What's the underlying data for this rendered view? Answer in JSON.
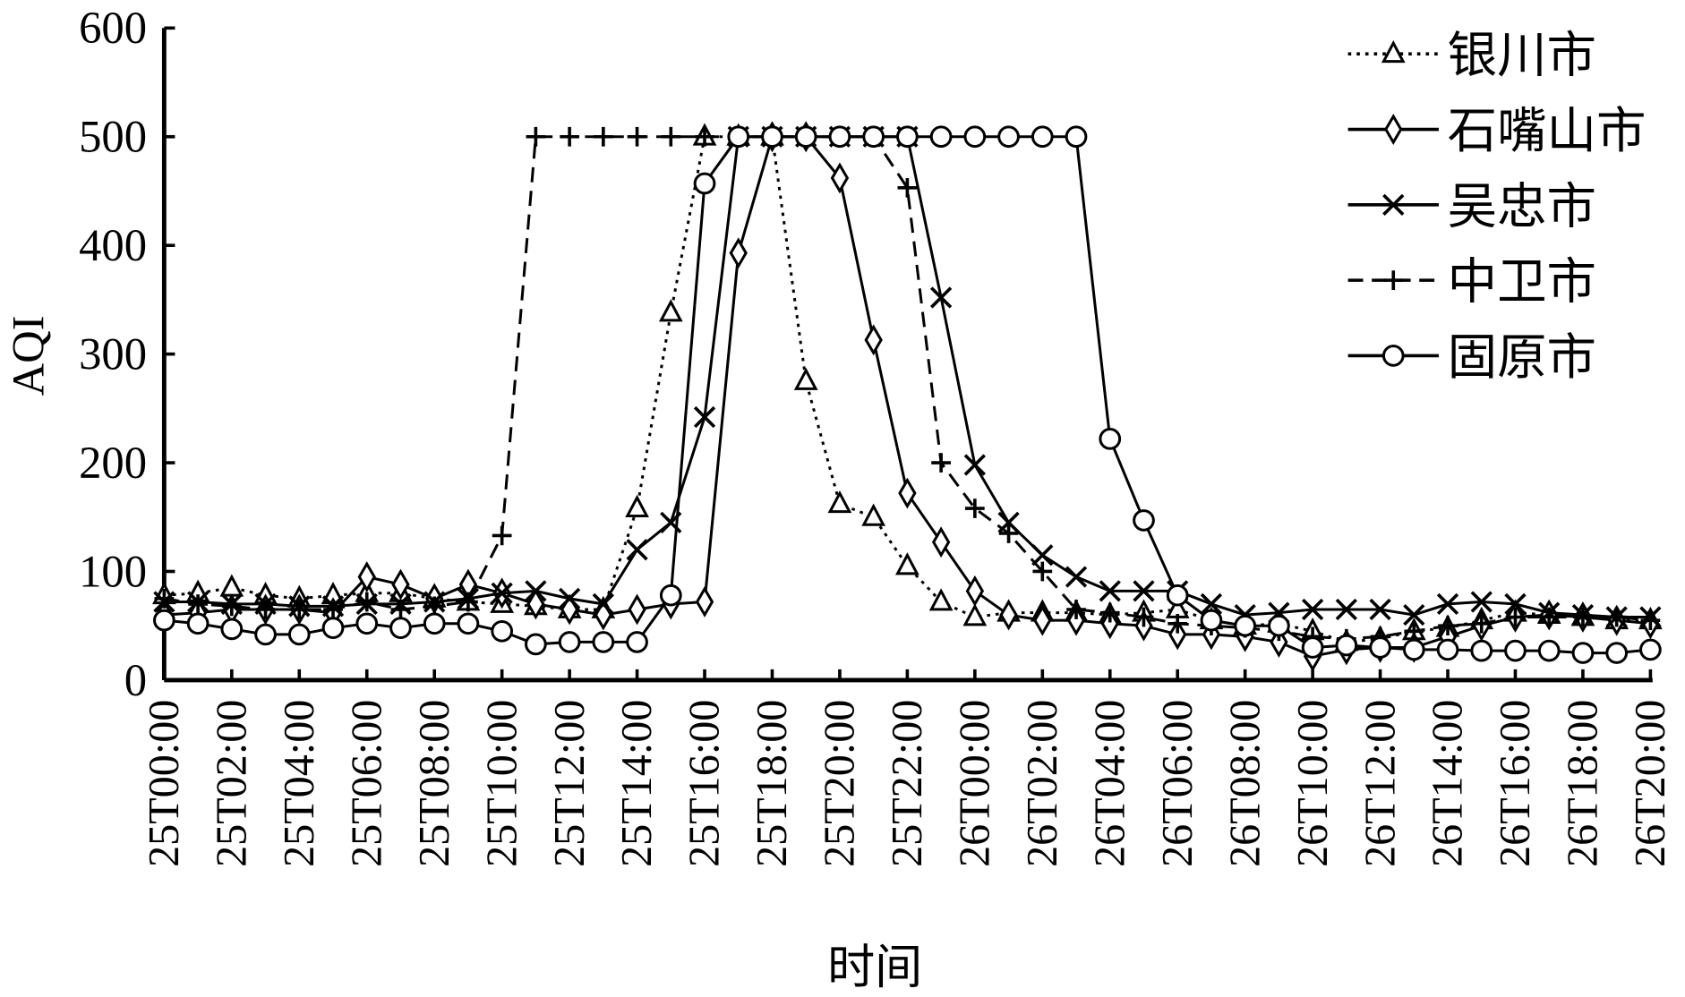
{
  "chart_data": {
    "type": "line",
    "title": "",
    "xlabel": "时间",
    "ylabel": "AQI",
    "ylim": [
      0,
      600
    ],
    "yticks": [
      0,
      100,
      200,
      300,
      400,
      500,
      600
    ],
    "legend_position": "top-right",
    "grid": false,
    "x": [
      "25T00:00",
      "25T01:00",
      "25T02:00",
      "25T03:00",
      "25T04:00",
      "25T05:00",
      "25T06:00",
      "25T07:00",
      "25T08:00",
      "25T09:00",
      "25T10:00",
      "25T11:00",
      "25T12:00",
      "25T13:00",
      "25T14:00",
      "25T15:00",
      "25T16:00",
      "25T17:00",
      "25T18:00",
      "25T19:00",
      "25T20:00",
      "25T21:00",
      "25T22:00",
      "25T23:00",
      "26T00:00",
      "26T01:00",
      "26T02:00",
      "26T03:00",
      "26T04:00",
      "26T05:00",
      "26T06:00",
      "26T07:00",
      "26T08:00",
      "26T09:00",
      "26T10:00",
      "26T11:00",
      "26T12:00",
      "26T13:00",
      "26T14:00",
      "26T15:00",
      "26T16:00",
      "26T17:00",
      "26T18:00",
      "26T19:00",
      "26T20:00"
    ],
    "xtick_labels": [
      "25T00:00",
      "25T02:00",
      "25T04:00",
      "25T06:00",
      "25T08:00",
      "25T10:00",
      "25T12:00",
      "25T14:00",
      "25T16:00",
      "25T18:00",
      "25T20:00",
      "25T22:00",
      "26T00:00",
      "26T02:00",
      "26T04:00",
      "26T06:00",
      "26T08:00",
      "26T10:00",
      "26T12:00",
      "26T14:00",
      "26T16:00",
      "26T18:00",
      "26T20:00"
    ],
    "series": [
      {
        "name": "银川市",
        "marker": "triangle",
        "dash": "dotted",
        "values": [
          78,
          80,
          85,
          78,
          75,
          78,
          80,
          80,
          75,
          72,
          70,
          68,
          65,
          65,
          158,
          338,
          500,
          500,
          500,
          275,
          162,
          150,
          105,
          72,
          58,
          62,
          62,
          62,
          60,
          62,
          65,
          55,
          50,
          52,
          45,
          35,
          38,
          45,
          48,
          55,
          62,
          60,
          58,
          55,
          55
        ]
      },
      {
        "name": "石嘴山市",
        "marker": "diamond",
        "dash": "solid",
        "values": [
          60,
          62,
          65,
          65,
          65,
          62,
          95,
          88,
          75,
          88,
          80,
          70,
          65,
          60,
          65,
          70,
          72,
          393,
          500,
          500,
          462,
          313,
          172,
          127,
          82,
          60,
          55,
          55,
          52,
          50,
          42,
          42,
          40,
          35,
          22,
          28,
          30,
          30,
          40,
          50,
          58,
          60,
          58,
          55,
          52
        ]
      },
      {
        "name": "吴忠市",
        "marker": "cross",
        "dash": "solid",
        "values": [
          72,
          72,
          70,
          70,
          68,
          68,
          70,
          70,
          72,
          75,
          80,
          82,
          75,
          70,
          120,
          145,
          242,
          500,
          500,
          500,
          500,
          500,
          500,
          352,
          198,
          145,
          115,
          95,
          82,
          82,
          82,
          70,
          60,
          62,
          65,
          65,
          65,
          60,
          70,
          72,
          70,
          62,
          60,
          58,
          58
        ]
      },
      {
        "name": "中卫市",
        "marker": "plus",
        "dash": "dashed",
        "values": [
          75,
          70,
          68,
          65,
          65,
          65,
          72,
          65,
          68,
          72,
          133,
          500,
          500,
          500,
          500,
          500,
          500,
          500,
          500,
          500,
          500,
          500,
          453,
          200,
          158,
          135,
          100,
          65,
          62,
          58,
          52,
          50,
          48,
          45,
          40,
          38,
          40,
          45,
          50,
          52,
          58,
          58,
          58,
          58,
          55
        ]
      },
      {
        "name": "固原市",
        "marker": "circle",
        "dash": "solid",
        "values": [
          55,
          52,
          47,
          42,
          42,
          48,
          52,
          48,
          52,
          52,
          45,
          33,
          35,
          35,
          35,
          78,
          457,
          500,
          500,
          500,
          500,
          500,
          500,
          500,
          500,
          500,
          500,
          500,
          222,
          147,
          78,
          55,
          50,
          50,
          30,
          32,
          30,
          28,
          28,
          27,
          27,
          27,
          25,
          25,
          28
        ]
      }
    ]
  }
}
